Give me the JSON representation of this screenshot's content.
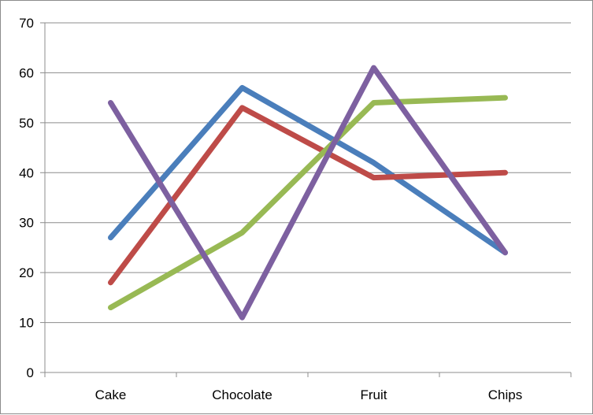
{
  "chart_data": {
    "type": "line",
    "title": "",
    "xlabel": "",
    "ylabel": "",
    "categories": [
      "Cake",
      "Chocolate",
      "Fruit",
      "Chips"
    ],
    "ylim": [
      0,
      70
    ],
    "yticks": [
      0,
      10,
      20,
      30,
      40,
      50,
      60,
      70
    ],
    "grid": true,
    "legend": "none",
    "series": [
      {
        "color": "#4a7ebb",
        "values": [
          27,
          57,
          42,
          24
        ]
      },
      {
        "color": "#be4b48",
        "values": [
          18,
          53,
          39,
          40
        ]
      },
      {
        "color": "#98b954",
        "values": [
          13,
          28,
          54,
          55
        ]
      },
      {
        "color": "#7d60a0",
        "values": [
          54,
          11,
          61,
          24
        ]
      }
    ]
  }
}
